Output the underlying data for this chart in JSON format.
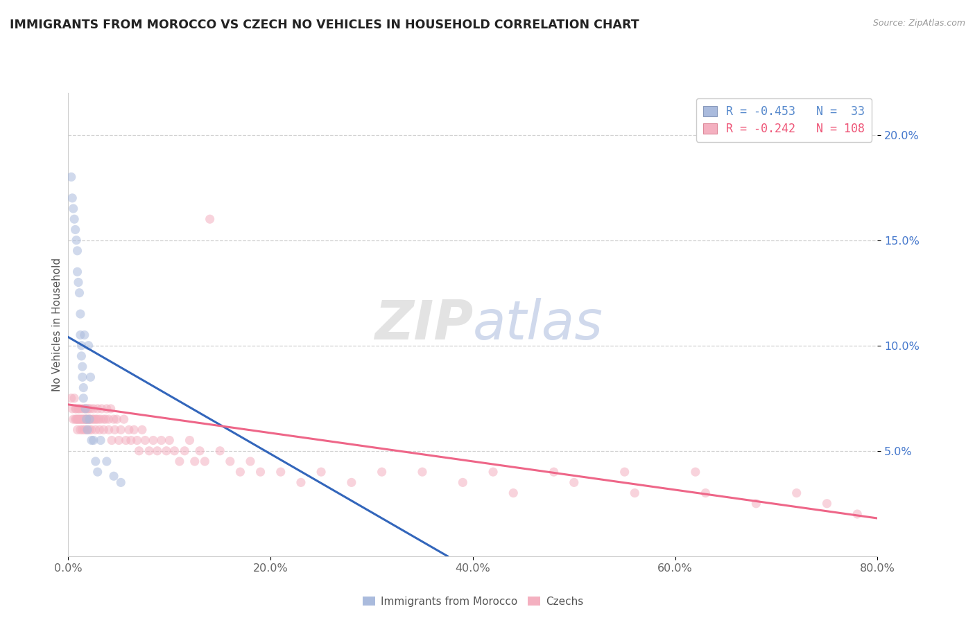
{
  "title": "IMMIGRANTS FROM MOROCCO VS CZECH NO VEHICLES IN HOUSEHOLD CORRELATION CHART",
  "source_text": "Source: ZipAtlas.com",
  "ylabel": "No Vehicles in Household",
  "watermark": "ZIPatlas",
  "xlim": [
    0.0,
    0.8
  ],
  "ylim": [
    0.0,
    0.22
  ],
  "xtick_labels": [
    "0.0%",
    "20.0%",
    "40.0%",
    "60.0%",
    "80.0%"
  ],
  "xtick_vals": [
    0.0,
    0.2,
    0.4,
    0.6,
    0.8
  ],
  "ytick_labels": [
    "5.0%",
    "10.0%",
    "15.0%",
    "20.0%"
  ],
  "ytick_vals": [
    0.05,
    0.1,
    0.15,
    0.2
  ],
  "legend_entries": [
    {
      "label": "R = -0.453   N =  33",
      "color": "#5588cc"
    },
    {
      "label": "R = -0.242   N = 108",
      "color": "#ee5577"
    }
  ],
  "legend_labels_bottom": [
    "Immigrants from Morocco",
    "Czechs"
  ],
  "blue_color": "#aabbdd",
  "pink_color": "#f4b0c0",
  "blue_line_color": "#3366bb",
  "pink_line_color": "#ee6688",
  "background_color": "#ffffff",
  "grid_color": "#cccccc",
  "title_color": "#222222",
  "blue_scatter_x": [
    0.003,
    0.004,
    0.005,
    0.006,
    0.007,
    0.008,
    0.009,
    0.009,
    0.01,
    0.011,
    0.012,
    0.012,
    0.013,
    0.013,
    0.014,
    0.014,
    0.015,
    0.015,
    0.016,
    0.017,
    0.018,
    0.019,
    0.02,
    0.021,
    0.022,
    0.023,
    0.025,
    0.027,
    0.029,
    0.032,
    0.038,
    0.045,
    0.052
  ],
  "blue_scatter_y": [
    0.18,
    0.17,
    0.165,
    0.16,
    0.155,
    0.15,
    0.145,
    0.135,
    0.13,
    0.125,
    0.115,
    0.105,
    0.1,
    0.095,
    0.09,
    0.085,
    0.08,
    0.075,
    0.105,
    0.07,
    0.065,
    0.06,
    0.1,
    0.065,
    0.085,
    0.055,
    0.055,
    0.045,
    0.04,
    0.055,
    0.045,
    0.038,
    0.035
  ],
  "pink_scatter_x": [
    0.003,
    0.004,
    0.005,
    0.006,
    0.007,
    0.007,
    0.008,
    0.008,
    0.009,
    0.009,
    0.01,
    0.01,
    0.011,
    0.011,
    0.012,
    0.012,
    0.013,
    0.013,
    0.014,
    0.014,
    0.015,
    0.015,
    0.016,
    0.016,
    0.017,
    0.017,
    0.018,
    0.018,
    0.019,
    0.019,
    0.02,
    0.02,
    0.021,
    0.021,
    0.022,
    0.022,
    0.023,
    0.024,
    0.025,
    0.025,
    0.027,
    0.027,
    0.028,
    0.029,
    0.03,
    0.031,
    0.032,
    0.033,
    0.035,
    0.035,
    0.037,
    0.038,
    0.04,
    0.04,
    0.042,
    0.043,
    0.045,
    0.046,
    0.048,
    0.05,
    0.052,
    0.055,
    0.057,
    0.06,
    0.062,
    0.065,
    0.068,
    0.07,
    0.073,
    0.076,
    0.08,
    0.084,
    0.088,
    0.092,
    0.097,
    0.1,
    0.105,
    0.11,
    0.115,
    0.12,
    0.125,
    0.13,
    0.135,
    0.14,
    0.15,
    0.16,
    0.17,
    0.18,
    0.19,
    0.21,
    0.23,
    0.25,
    0.28,
    0.31,
    0.35,
    0.39,
    0.44,
    0.5,
    0.56,
    0.63,
    0.68,
    0.72,
    0.75,
    0.78,
    0.62,
    0.55,
    0.48,
    0.42
  ],
  "pink_scatter_y": [
    0.075,
    0.07,
    0.065,
    0.075,
    0.065,
    0.07,
    0.065,
    0.07,
    0.06,
    0.065,
    0.07,
    0.065,
    0.07,
    0.065,
    0.06,
    0.065,
    0.07,
    0.065,
    0.065,
    0.06,
    0.065,
    0.07,
    0.06,
    0.065,
    0.07,
    0.065,
    0.065,
    0.06,
    0.07,
    0.065,
    0.07,
    0.065,
    0.065,
    0.06,
    0.065,
    0.07,
    0.06,
    0.065,
    0.07,
    0.065,
    0.065,
    0.06,
    0.065,
    0.07,
    0.065,
    0.06,
    0.065,
    0.07,
    0.065,
    0.06,
    0.065,
    0.07,
    0.06,
    0.065,
    0.07,
    0.055,
    0.065,
    0.06,
    0.065,
    0.055,
    0.06,
    0.065,
    0.055,
    0.06,
    0.055,
    0.06,
    0.055,
    0.05,
    0.06,
    0.055,
    0.05,
    0.055,
    0.05,
    0.055,
    0.05,
    0.055,
    0.05,
    0.045,
    0.05,
    0.055,
    0.045,
    0.05,
    0.045,
    0.16,
    0.05,
    0.045,
    0.04,
    0.045,
    0.04,
    0.04,
    0.035,
    0.04,
    0.035,
    0.04,
    0.04,
    0.035,
    0.03,
    0.035,
    0.03,
    0.03,
    0.025,
    0.03,
    0.025,
    0.02,
    0.04,
    0.04,
    0.04,
    0.04
  ],
  "blue_line_x0": 0.0,
  "blue_line_x1": 0.375,
  "blue_line_y0": 0.104,
  "blue_line_y1": 0.0,
  "pink_line_x0": 0.0,
  "pink_line_x1": 0.8,
  "pink_line_y0": 0.072,
  "pink_line_y1": 0.018,
  "marker_size": 90,
  "marker_alpha": 0.55
}
